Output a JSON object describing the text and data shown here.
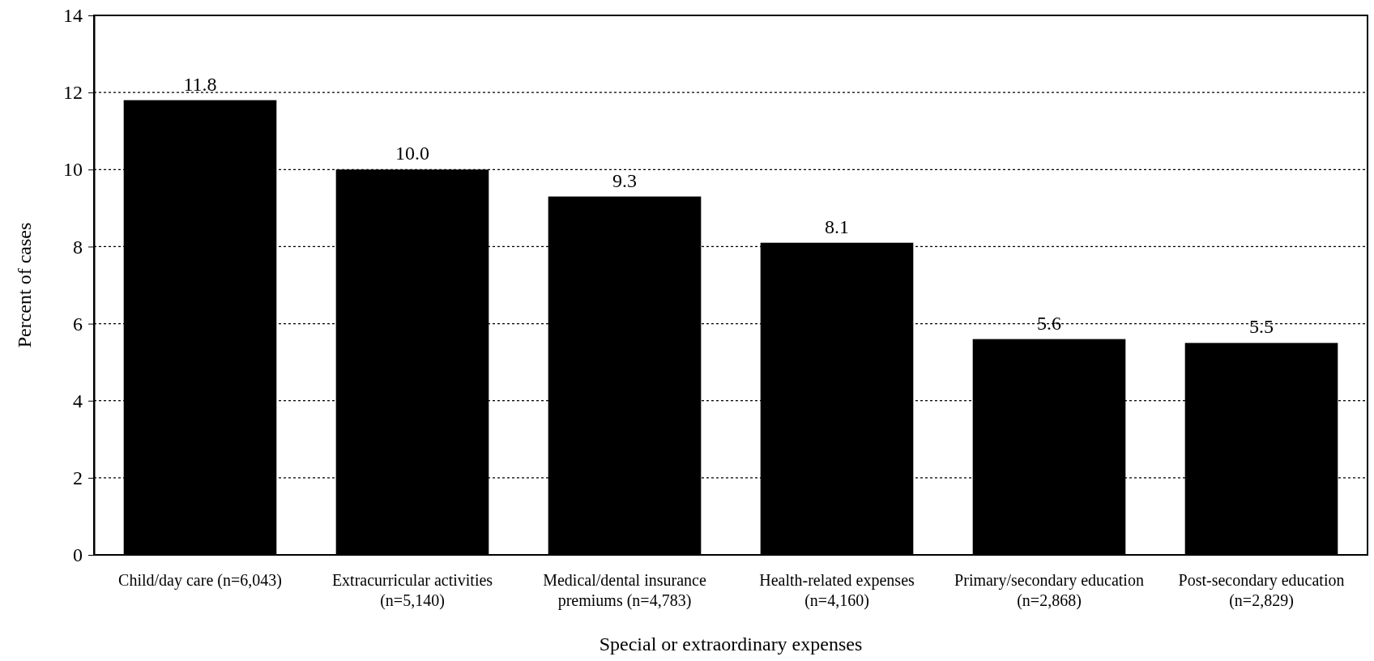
{
  "chart_data": {
    "type": "bar",
    "xlabel": "Special or extraordinary expenses",
    "ylabel": "Percent of cases",
    "categories": [
      "Child/day care (n=6,043)",
      "Extracurricular activities (n=5,140)",
      "Medical/dental insurance premiums (n=4,783)",
      "Health-related expenses (n=4,160)",
      "Primary/secondary education (n=2,868)",
      "Post-secondary education (n=2,829)"
    ],
    "values": [
      11.8,
      10.0,
      9.3,
      8.1,
      5.6,
      5.5
    ],
    "value_labels": [
      "11.8",
      "10.0",
      "9.3",
      "8.1",
      "5.6",
      "5.5"
    ],
    "color": "#000000",
    "ylim": [
      0,
      14
    ],
    "yticks": [
      0,
      2,
      4,
      6,
      8,
      10,
      12,
      14
    ],
    "grid": "y",
    "line_style": "dotted"
  }
}
